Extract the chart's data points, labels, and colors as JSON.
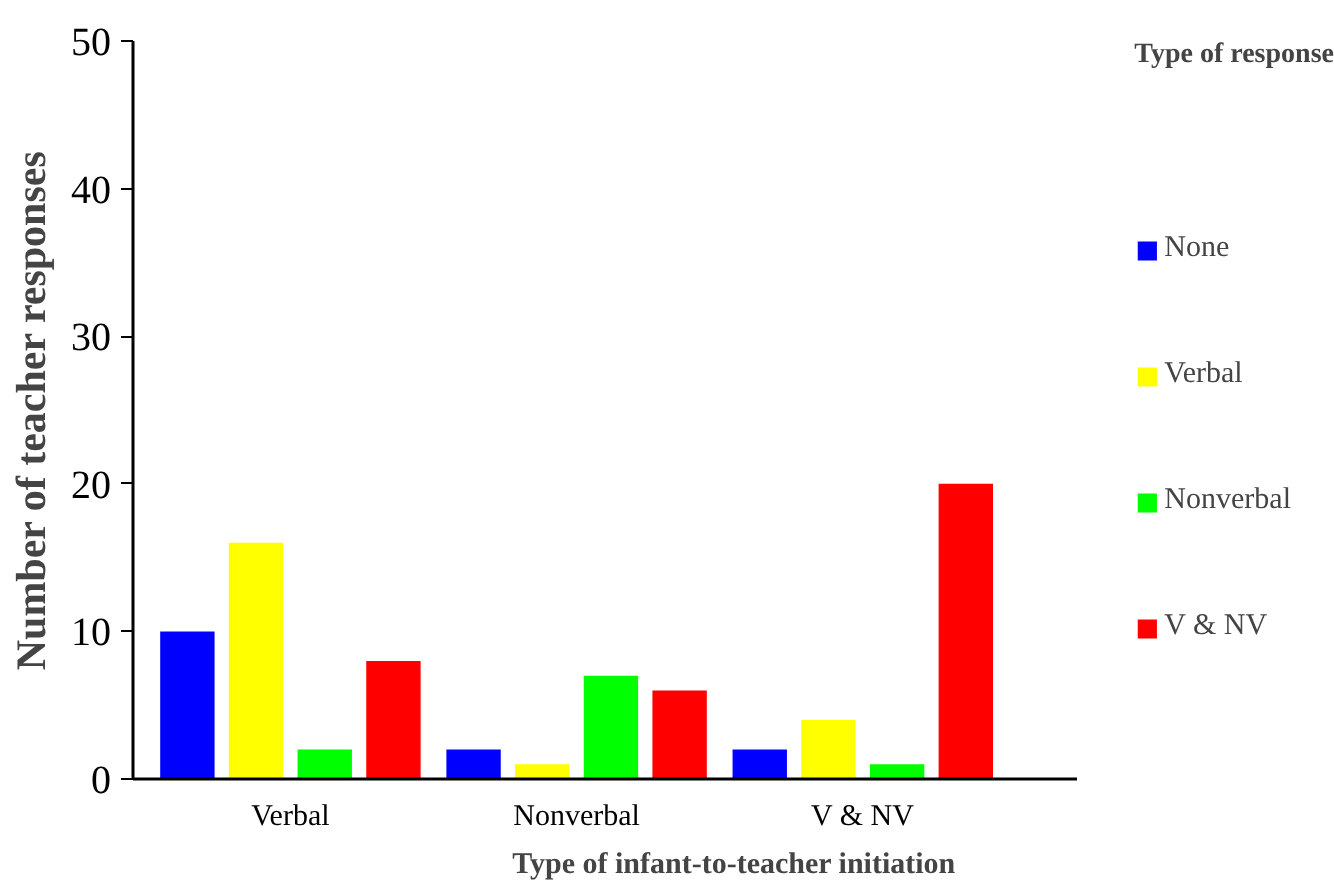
{
  "chart_data": {
    "type": "bar",
    "xlabel": "Type of infant-to-teacher initiation",
    "ylabel": "Number of teacher responses",
    "legend_title": "Type of response",
    "categories": [
      "Verbal",
      "Nonverbal",
      "V & NV"
    ],
    "series": [
      {
        "name": "None",
        "color": "#0000ff",
        "values": [
          10,
          2,
          2
        ]
      },
      {
        "name": "Verbal",
        "color": "#ffff00",
        "values": [
          16,
          1,
          4
        ]
      },
      {
        "name": "Nonverbal",
        "color": "#00ff00",
        "values": [
          2,
          7,
          1
        ]
      },
      {
        "name": "V & NV",
        "color": "#ff0000",
        "values": [
          8,
          6,
          20
        ]
      }
    ],
    "ylim": [
      0,
      50
    ],
    "yticks": [
      0,
      10,
      20,
      30,
      40,
      50
    ],
    "grid": false,
    "legend": "right"
  }
}
